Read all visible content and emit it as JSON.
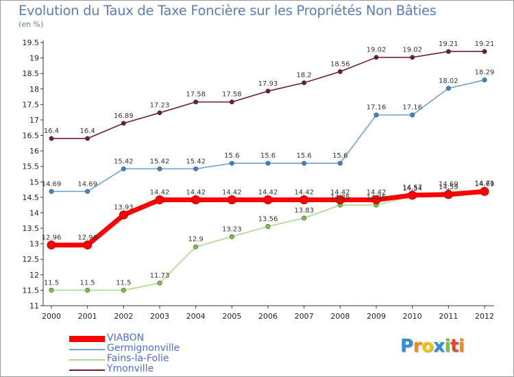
{
  "chart_data": {
    "type": "line",
    "title": "Evolution du Taux de Taxe Foncière sur les Propriétés Non Bâties",
    "unit_label": "(en %)",
    "x": [
      "2000",
      "2001",
      "2002",
      "2003",
      "2004",
      "2005",
      "2006",
      "2007",
      "2008",
      "2009",
      "2010",
      "2011",
      "2012"
    ],
    "ylim": [
      11,
      19.5
    ],
    "yticks": [
      "11",
      "11.5",
      "12",
      "12.5",
      "13",
      "13.5",
      "14",
      "14.5",
      "15",
      "15.5",
      "16",
      "16.5",
      "17",
      "17.5",
      "18",
      "18.5",
      "19",
      "19.5"
    ],
    "grid": false,
    "legend_position": "bottom-left",
    "series": [
      {
        "name": "Ymonville",
        "color": "#6b1f28",
        "point_color": "#6b1f28",
        "values": [
          16.4,
          16.4,
          16.89,
          17.23,
          17.58,
          17.58,
          17.93,
          18.2,
          18.56,
          19.02,
          19.02,
          19.21,
          19.21
        ]
      },
      {
        "name": "Germignonville",
        "color": "#6fa3d2",
        "point_color": "#3a86c8",
        "values": [
          14.69,
          14.69,
          15.42,
          15.42,
          15.42,
          15.6,
          15.6,
          15.6,
          15.6,
          17.16,
          17.16,
          18.02,
          18.29
        ]
      },
      {
        "name": "Fains-la-Folie",
        "color": "#a9d98b",
        "point_color": "#7cc242",
        "values": [
          11.5,
          11.5,
          11.5,
          11.73,
          12.9,
          13.23,
          13.56,
          13.83,
          14.25,
          14.25,
          14.54,
          14.69,
          14.71
        ]
      },
      {
        "name": "VIABON",
        "color": "#ff0000",
        "point_color": "#ff0000",
        "values": [
          12.96,
          12.96,
          13.93,
          14.42,
          14.42,
          14.42,
          14.42,
          14.42,
          14.42,
          14.42,
          14.57,
          14.59,
          14.69
        ]
      }
    ]
  },
  "legend": [
    {
      "label": "VIABON",
      "color": "#ff0000"
    },
    {
      "label": "Germignonville",
      "color": "#6fa3d2"
    },
    {
      "label": "Fains-la-Folie",
      "color": "#a9d98b"
    },
    {
      "label": "Ymonville",
      "color": "#6b1f28"
    }
  ],
  "logo": {
    "letters": [
      {
        "ch": "P",
        "color": "#2f8fd6"
      },
      {
        "ch": "r",
        "color": "#f28a1b"
      },
      {
        "ch": "o",
        "color": "#f5c400"
      },
      {
        "ch": "x",
        "color": "#2f8fd6"
      },
      {
        "ch": "i",
        "color": "#7cc242"
      },
      {
        "ch": "t",
        "color": "#e8412f"
      },
      {
        "ch": "i",
        "color": "#f28a1b"
      }
    ]
  }
}
